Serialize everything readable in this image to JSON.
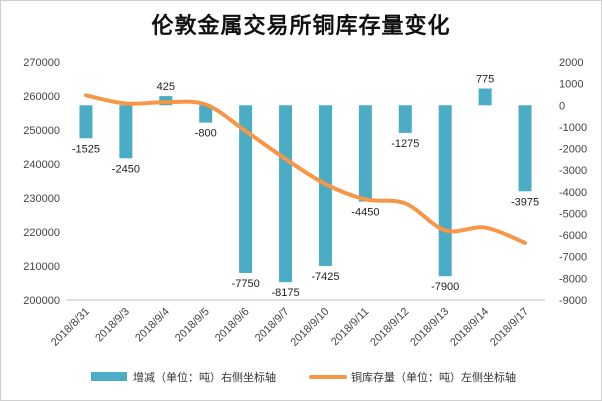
{
  "chart_data": {
    "type": "bar+line",
    "title": "伦敦金属交易所铜库存量变化",
    "categories": [
      "2018/8/31",
      "2018/9/3",
      "2018/9/4",
      "2018/9/5",
      "2018/9/6",
      "2018/9/7",
      "2018/9/10",
      "2018/9/11",
      "2018/9/12",
      "2018/9/13",
      "2018/9/14",
      "2018/9/17"
    ],
    "series": [
      {
        "name": "增减（单位：吨）右侧坐标轴",
        "type": "bar",
        "axis": "right",
        "values": [
          -1525,
          -2450,
          425,
          -800,
          -7750,
          -8175,
          -7425,
          -4450,
          -1275,
          -7900,
          775,
          -3975
        ],
        "color": "#4aacc5"
      },
      {
        "name": "铜库存量（单位：吨）左侧坐标轴",
        "type": "line",
        "axis": "left",
        "values": [
          260200,
          257800,
          258200,
          257500,
          249700,
          241500,
          234100,
          229600,
          228400,
          220500,
          221300,
          216800
        ],
        "color": "#f79646"
      }
    ],
    "left_axis": {
      "min": 200000,
      "max": 270000,
      "step": 10000,
      "ticks": [
        "270000",
        "260000",
        "250000",
        "240000",
        "230000",
        "220000",
        "210000",
        "200000"
      ]
    },
    "right_axis": {
      "min": -9000,
      "max": 2000,
      "step": 1000,
      "ticks": [
        "2000",
        "1000",
        "0",
        "-1000",
        "-2000",
        "-3000",
        "-4000",
        "-5000",
        "-6000",
        "-7000",
        "-8000",
        "-9000"
      ]
    },
    "legend_position": "bottom",
    "grid": false
  }
}
